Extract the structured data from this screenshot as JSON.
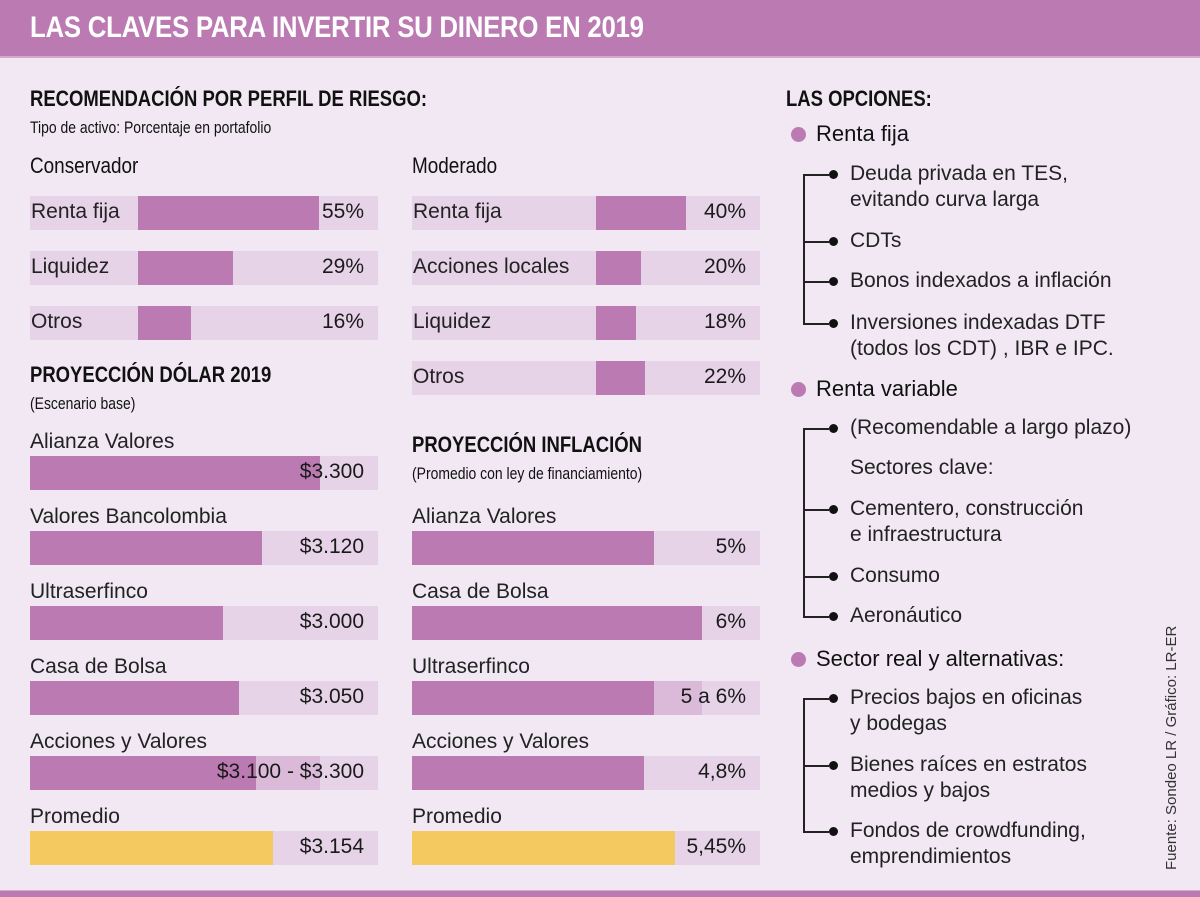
{
  "title": "LAS CLAVES PARA INVERTIR SU DINERO EN 2019",
  "colors": {
    "accent": "#bb7bb2",
    "background": "#f1e8f3",
    "track": "#e6d3e8",
    "average": "#f3c960",
    "range": "#dbb9d9"
  },
  "risk": {
    "heading": "RECOMENDACIÓN POR PERFIL DE RIESGO:",
    "subheading": "Tipo de activo: Porcentaje en portafolio",
    "conservador": {
      "label": "Conservador",
      "rows": [
        {
          "label": "Renta fija",
          "value": 55,
          "display": "55%"
        },
        {
          "label": "Liquidez",
          "value": 29,
          "display": "29%"
        },
        {
          "label": "Otros",
          "value": 16,
          "display": "16%"
        }
      ]
    },
    "moderado": {
      "label": "Moderado",
      "rows": [
        {
          "label": "Renta fija",
          "value": 40,
          "display": "40%"
        },
        {
          "label": "Acciones locales",
          "value": 20,
          "display": "20%"
        },
        {
          "label": "Liquidez",
          "value": 18,
          "display": "18%"
        },
        {
          "label": "Otros",
          "value": 22,
          "display": "22%"
        }
      ]
    }
  },
  "dollar": {
    "heading": "PROYECCIÓN DÓLAR 2019",
    "subheading": "(Escenario base)",
    "rows": [
      {
        "label": "Alianza Valores",
        "value": 3300,
        "display": "$3.300"
      },
      {
        "label": "Valores Bancolombia",
        "value": 3120,
        "display": "$3.120"
      },
      {
        "label": "Ultraserfinco",
        "value": 3000,
        "display": "$3.000"
      },
      {
        "label": "Casa de Bolsa",
        "value": 3050,
        "display": "$3.050"
      },
      {
        "label": "Acciones y Valores",
        "value": 3100,
        "value_high": 3300,
        "display": "$3.100 - $3.300"
      },
      {
        "label": "Promedio",
        "value": 3154,
        "display": "$3.154",
        "average": true
      }
    ]
  },
  "inflation": {
    "heading": "PROYECCIÓN INFLACIÓN",
    "subheading": "(Promedio con ley de financiamiento)",
    "rows": [
      {
        "label": "Alianza Valores",
        "value": 5,
        "display": "5%"
      },
      {
        "label": "Casa de Bolsa",
        "value": 6,
        "display": "6%"
      },
      {
        "label": "Ultraserfinco",
        "value": 5,
        "value_high": 6,
        "display": "5 a 6%"
      },
      {
        "label": "Acciones y Valores",
        "value": 4.8,
        "display": "4,8%"
      },
      {
        "label": "Promedio",
        "value": 5.45,
        "display": "5,45%",
        "average": true
      }
    ]
  },
  "options": {
    "heading": "LAS OPCIONES:",
    "groups": [
      {
        "label": "Renta fija",
        "items": [
          {
            "text": [
              "Deuda privada en TES,",
              "evitando curva larga"
            ],
            "bullet": true
          },
          {
            "text": [
              "CDTs"
            ],
            "bullet": true
          },
          {
            "text": [
              "Bonos indexados a inflación"
            ],
            "bullet": true
          },
          {
            "text": [
              "Inversiones indexadas DTF",
              "(todos los CDT) , IBR e IPC."
            ],
            "bullet": true
          }
        ]
      },
      {
        "label": "Renta variable",
        "items": [
          {
            "text": [
              "(Recomendable a largo plazo)"
            ],
            "bullet": true
          },
          {
            "text": [
              "Sectores clave:"
            ],
            "bullet": false
          },
          {
            "text": [
              "Cementero, construcción",
              "e infraestructura"
            ],
            "bullet": true
          },
          {
            "text": [
              "Consumo"
            ],
            "bullet": true
          },
          {
            "text": [
              "Aeronáutico"
            ],
            "bullet": true
          }
        ]
      },
      {
        "label": "Sector real y alternativas:",
        "items": [
          {
            "text": [
              "Precios bajos en oficinas",
              "y bodegas"
            ],
            "bullet": true
          },
          {
            "text": [
              "Bienes raíces en estratos",
              "medios y bajos"
            ],
            "bullet": true
          },
          {
            "text": [
              "Fondos de crowdfunding,",
              "emprendimientos"
            ],
            "bullet": true
          }
        ]
      }
    ]
  },
  "source": "Fuente: Sondeo LR / Gráfico: LR-ER",
  "chart_data": [
    {
      "type": "bar",
      "title": "Conservador",
      "subtitle": "Tipo de activo: Porcentaje en portafolio",
      "categories": [
        "Renta fija",
        "Liquidez",
        "Otros"
      ],
      "values": [
        55,
        29,
        16
      ],
      "unit": "%",
      "ylim": [
        0,
        100
      ]
    },
    {
      "type": "bar",
      "title": "Moderado",
      "subtitle": "Tipo de activo: Porcentaje en portafolio",
      "categories": [
        "Renta fija",
        "Acciones locales",
        "Liquidez",
        "Otros"
      ],
      "values": [
        40,
        20,
        18,
        22
      ],
      "unit": "%",
      "ylim": [
        0,
        100
      ]
    },
    {
      "type": "bar",
      "title": "PROYECCIÓN DÓLAR 2019 (Escenario base)",
      "categories": [
        "Alianza Valores",
        "Valores Bancolombia",
        "Ultraserfinco",
        "Casa de Bolsa",
        "Acciones y Valores",
        "Promedio"
      ],
      "values": [
        3300,
        3120,
        3000,
        3050,
        3100,
        3154
      ],
      "range_high": [
        null,
        null,
        null,
        null,
        3300,
        null
      ],
      "unit": "COP"
    },
    {
      "type": "bar",
      "title": "PROYECCIÓN INFLACIÓN (Promedio con ley de financiamiento)",
      "categories": [
        "Alianza Valores",
        "Casa de Bolsa",
        "Ultraserfinco",
        "Acciones y Valores",
        "Promedio"
      ],
      "values": [
        5,
        6,
        5,
        4.8,
        5.45
      ],
      "range_high": [
        null,
        null,
        6,
        null,
        null
      ],
      "unit": "%"
    }
  ]
}
